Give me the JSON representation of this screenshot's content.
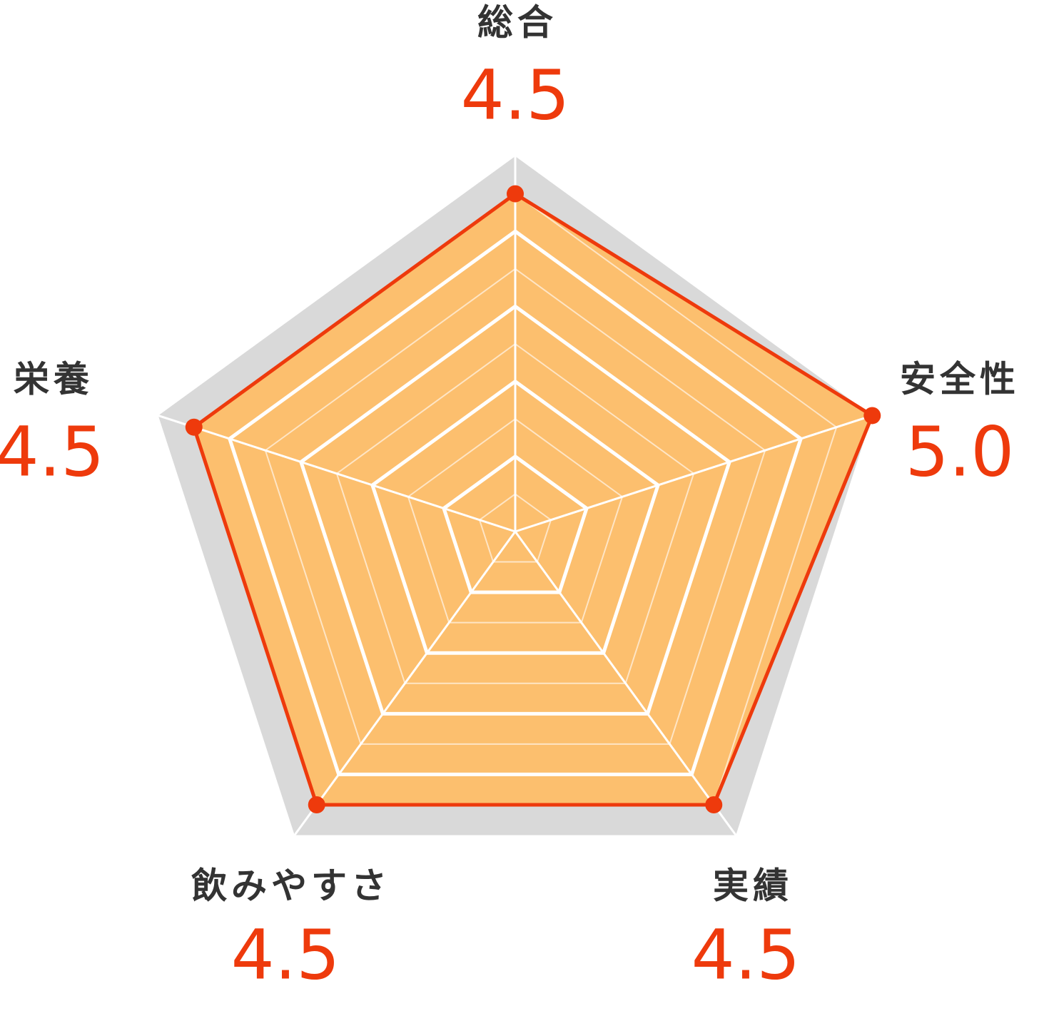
{
  "chart_data": {
    "type": "radar",
    "categories": [
      "総合",
      "安全性",
      "実績",
      "飲みやすさ",
      "栄養"
    ],
    "values": [
      4.5,
      5.0,
      4.5,
      4.5,
      4.5
    ],
    "value_labels": [
      "4.5",
      "5.0",
      "4.5",
      "4.5",
      "4.5"
    ],
    "rlim": [
      0,
      5
    ],
    "rticks": [
      1,
      2,
      3,
      4
    ],
    "grid": true,
    "color": "#ee3a0c",
    "fill_color": "#fcbf6e",
    "background_color": "#d9d9d9"
  }
}
